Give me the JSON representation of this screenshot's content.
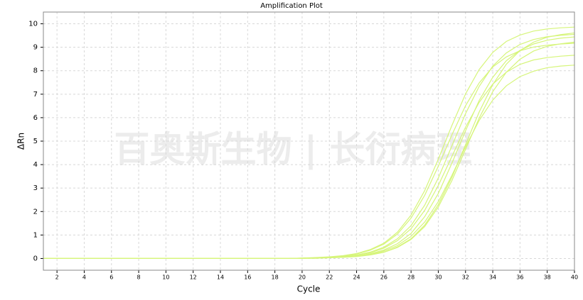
{
  "chart_data": {
    "type": "line",
    "title": "Amplification Plot",
    "x_label": "Cycle",
    "y_label": "ΔRn",
    "watermark": "百奥斯生物 | 长衍病理",
    "x": [
      1,
      2,
      3,
      4,
      5,
      6,
      7,
      8,
      9,
      10,
      11,
      12,
      13,
      14,
      15,
      16,
      17,
      18,
      19,
      20,
      21,
      22,
      23,
      24,
      25,
      26,
      27,
      28,
      29,
      30,
      31,
      32,
      33,
      34,
      35,
      36,
      37,
      38,
      39,
      40
    ],
    "xlim": [
      1,
      40
    ],
    "ylim": [
      -0.5,
      10.5
    ],
    "xticks": [
      2,
      4,
      6,
      8,
      10,
      12,
      14,
      16,
      18,
      20,
      22,
      24,
      26,
      28,
      30,
      32,
      34,
      36,
      38,
      40
    ],
    "yticks": [
      0,
      1,
      2,
      3,
      4,
      5,
      6,
      7,
      8,
      9,
      10
    ],
    "grid": true,
    "series": [
      {
        "color": "#d6f57a",
        "values": [
          0,
          0,
          0,
          0,
          0,
          0,
          0,
          0,
          0,
          0,
          0,
          0,
          0,
          0,
          0,
          0,
          0,
          0,
          0,
          0.02,
          0.04,
          0.07,
          0.12,
          0.21,
          0.38,
          0.65,
          1.12,
          1.85,
          2.89,
          4.23,
          5.67,
          7.01,
          8.05,
          8.78,
          9.25,
          9.52,
          9.69,
          9.78,
          9.83,
          9.86
        ]
      },
      {
        "color": "#d6f57a",
        "values": [
          0,
          0,
          0,
          0,
          0,
          0,
          0,
          0,
          0,
          0,
          0,
          0,
          0,
          0,
          0,
          0,
          0,
          0,
          0,
          0.01,
          0.03,
          0.05,
          0.09,
          0.15,
          0.27,
          0.48,
          0.84,
          1.4,
          2.27,
          3.43,
          4.8,
          6.17,
          7.33,
          8.2,
          8.76,
          9.12,
          9.33,
          9.45,
          9.51,
          9.55
        ]
      },
      {
        "color": "#d6f57a",
        "values": [
          0,
          0,
          0,
          0,
          0,
          0,
          0,
          0,
          0,
          0,
          0,
          0,
          0,
          0,
          0,
          0,
          0,
          0,
          0,
          0.01,
          0.02,
          0.04,
          0.06,
          0.11,
          0.2,
          0.36,
          0.63,
          1.07,
          1.78,
          2.77,
          4.06,
          5.44,
          6.73,
          7.72,
          8.43,
          8.87,
          9.14,
          9.3,
          9.39,
          9.44
        ]
      },
      {
        "color": "#d6f57a",
        "values": [
          0,
          0,
          0,
          0,
          0,
          0,
          0,
          0,
          0,
          0,
          0,
          0,
          0,
          0,
          0,
          0,
          0,
          0,
          0,
          0.01,
          0.01,
          0.03,
          0.05,
          0.08,
          0.15,
          0.26,
          0.47,
          0.81,
          1.36,
          2.19,
          3.32,
          4.65,
          5.98,
          7.11,
          7.94,
          8.49,
          8.84,
          9.04,
          9.15,
          9.22
        ]
      },
      {
        "color": "#d6f57a",
        "values": [
          0,
          0,
          0,
          0,
          0,
          0,
          0,
          0,
          0,
          0,
          0,
          0,
          0,
          0,
          0,
          0,
          0,
          0,
          0,
          0.01,
          0.02,
          0.04,
          0.08,
          0.14,
          0.24,
          0.44,
          0.76,
          1.27,
          2.05,
          3.11,
          4.35,
          5.59,
          6.65,
          7.43,
          7.94,
          8.27,
          8.46,
          8.56,
          8.62,
          8.66
        ]
      },
      {
        "color": "#d6f57a",
        "values": [
          0,
          0,
          0,
          0,
          0,
          0,
          0,
          0,
          0,
          0,
          0,
          0,
          0,
          0,
          0,
          0,
          0,
          0,
          0,
          0.01,
          0.02,
          0.03,
          0.06,
          0.1,
          0.17,
          0.32,
          0.55,
          0.94,
          1.55,
          2.42,
          3.54,
          4.76,
          5.88,
          6.75,
          7.36,
          7.75,
          7.98,
          8.13,
          8.2,
          8.24
        ]
      },
      {
        "color": "#d6f57a",
        "values": [
          0,
          0,
          0,
          0,
          0,
          0,
          0,
          0,
          0,
          0,
          0,
          0,
          0,
          0,
          0,
          0,
          0,
          0,
          0,
          0.01,
          0.01,
          0.03,
          0.05,
          0.09,
          0.16,
          0.27,
          0.49,
          0.84,
          1.42,
          2.29,
          3.46,
          4.85,
          6.24,
          7.41,
          8.28,
          8.86,
          9.22,
          9.43,
          9.54,
          9.61
        ]
      },
      {
        "color": "#d6f57a",
        "values": [
          0,
          0,
          0,
          0,
          0,
          0,
          0,
          0,
          0,
          0,
          0,
          0,
          0,
          0,
          0,
          0,
          0,
          0,
          0,
          0.02,
          0.03,
          0.06,
          0.11,
          0.19,
          0.35,
          0.61,
          1.04,
          1.72,
          2.69,
          3.93,
          5.27,
          6.51,
          7.48,
          8.16,
          8.59,
          8.85,
          9.01,
          9.09,
          9.14,
          9.17
        ]
      }
    ]
  }
}
